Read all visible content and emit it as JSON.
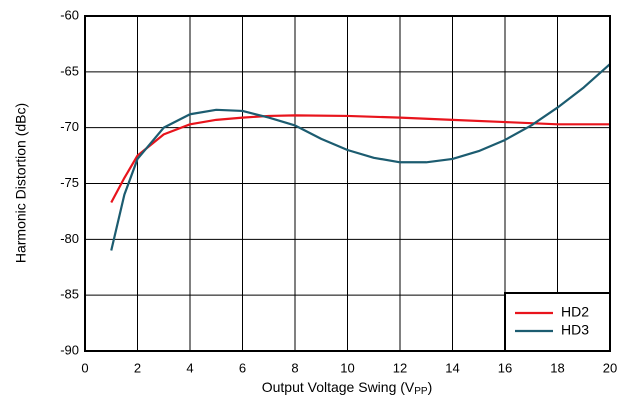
{
  "chart_data": {
    "type": "line",
    "xlabel": [
      "Output Voltage Swing (V",
      "PP",
      ")"
    ],
    "ylabel": "Harmonic Distortion (dBc)",
    "xlim": [
      0,
      20
    ],
    "xticks": [
      0,
      2,
      4,
      6,
      8,
      10,
      12,
      14,
      16,
      18,
      20
    ],
    "ylim": [
      -90,
      -60
    ],
    "yticks": [
      -90,
      -85,
      -80,
      -75,
      -70,
      -65,
      -60
    ],
    "grid": true,
    "legend": "lower right",
    "series": [
      {
        "name": "HD2",
        "color": "#e8141c",
        "x": [
          1,
          1.5,
          2,
          3,
          4,
          5,
          6,
          7,
          8,
          10,
          12,
          14,
          16,
          18,
          20
        ],
        "values": [
          -76.7,
          -74.5,
          -72.5,
          -70.6,
          -69.7,
          -69.3,
          -69.1,
          -68.95,
          -68.9,
          -68.95,
          -69.1,
          -69.3,
          -69.5,
          -69.7,
          -69.7
        ]
      },
      {
        "name": "HD3",
        "color": "#1c5c70",
        "x": [
          1,
          1.5,
          2,
          3,
          4,
          5,
          6,
          7,
          8,
          9,
          10,
          11,
          12,
          13,
          14,
          15,
          16,
          17,
          18,
          19,
          20
        ],
        "values": [
          -81,
          -76,
          -72.8,
          -70,
          -68.8,
          -68.4,
          -68.5,
          -69.1,
          -69.8,
          -71,
          -72,
          -72.7,
          -73.1,
          -73.1,
          -72.8,
          -72.1,
          -71.1,
          -69.8,
          -68.2,
          -66.4,
          -64.3
        ]
      }
    ]
  }
}
